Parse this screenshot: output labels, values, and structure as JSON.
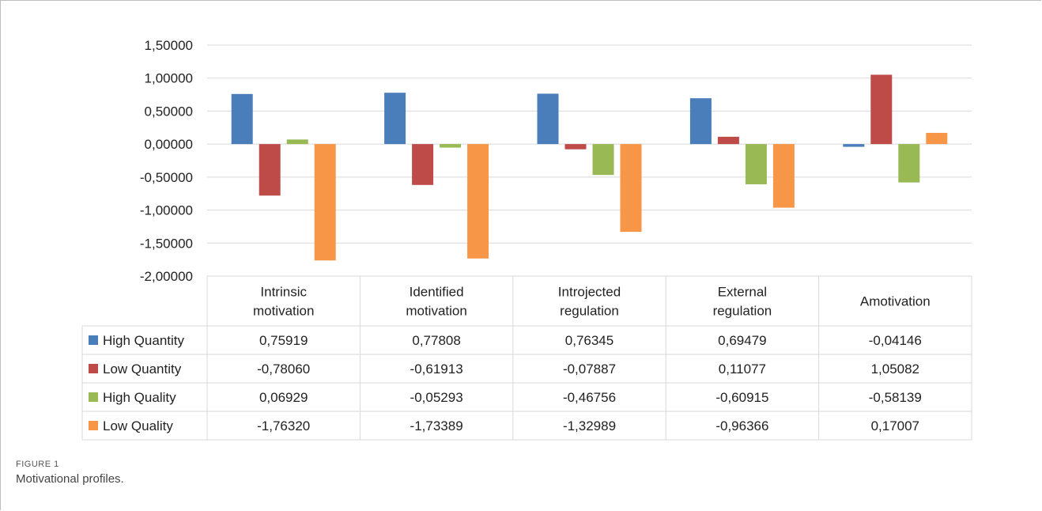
{
  "chart_data": {
    "type": "bar",
    "categories": [
      [
        "Intrinsic",
        "motivation"
      ],
      [
        "Identified",
        "motivation"
      ],
      [
        "Introjected",
        "regulation"
      ],
      [
        "External",
        "regulation"
      ],
      [
        "Amotivation"
      ]
    ],
    "series": [
      {
        "name": "High Quantity",
        "color": "#4a7ebb",
        "values": [
          0.75919,
          0.77808,
          0.76345,
          0.69479,
          -0.04146
        ],
        "labels": [
          "0,75919",
          "0,77808",
          "0,76345",
          "0,69479",
          "-0,04146"
        ]
      },
      {
        "name": "Low Quantity",
        "color": "#be4b48",
        "values": [
          -0.7806,
          -0.61913,
          -0.07887,
          0.11077,
          1.05082
        ],
        "labels": [
          "-0,78060",
          "-0,61913",
          "-0,07887",
          "0,11077",
          "1,05082"
        ]
      },
      {
        "name": "High Quality",
        "color": "#98b954",
        "values": [
          0.06929,
          -0.05293,
          -0.46756,
          -0.60915,
          -0.58139
        ],
        "labels": [
          "0,06929",
          "-0,05293",
          "-0,46756",
          "-0,60915",
          "-0,58139"
        ]
      },
      {
        "name": "Low Quality",
        "color": "#f79646",
        "values": [
          -1.7632,
          -1.73389,
          -1.32989,
          -0.96366,
          0.17007
        ],
        "labels": [
          "-1,76320",
          "-1,73389",
          "-1,32989",
          "-0,96366",
          "0,17007"
        ]
      }
    ],
    "yticks": [
      1.5,
      1.0,
      0.5,
      0.0,
      -0.5,
      -1.0,
      -1.5,
      -2.0
    ],
    "ytick_labels": [
      "1,50000",
      "1,00000",
      "0,50000",
      "0,00000",
      "-0,50000",
      "-1,00000",
      "-1,50000",
      "-2,00000"
    ],
    "ylim": [
      -2.0,
      1.5
    ],
    "grid": true,
    "legend": "data-table"
  },
  "caption": {
    "label": "FIGURE 1",
    "text": "Motivational profiles."
  }
}
